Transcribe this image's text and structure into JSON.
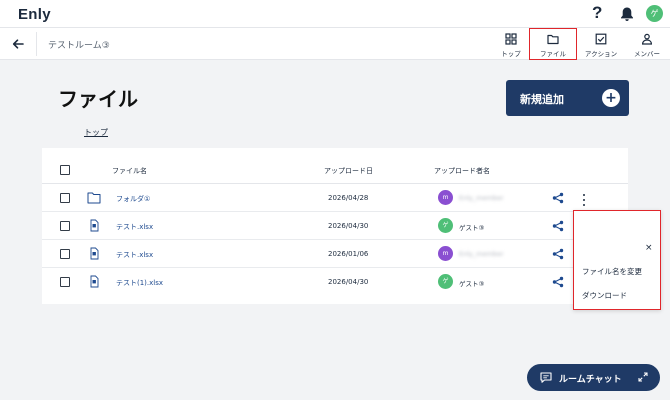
{
  "app": {
    "logo": "Enly",
    "help": "?",
    "user_initial": "ゲ"
  },
  "subnav": {
    "room": "テストルーム③",
    "tabs": [
      {
        "label": "トップ",
        "icon": "grid-icon"
      },
      {
        "label": "ファイル",
        "icon": "folder-icon",
        "active": true
      },
      {
        "label": "アクション",
        "icon": "checkbox-icon"
      },
      {
        "label": "メンバー",
        "icon": "person-icon"
      }
    ]
  },
  "page": {
    "title": "ファイル",
    "add_label": "新規追加",
    "add_icon": "+",
    "breadcrumb": "トップ"
  },
  "table": {
    "headers": {
      "name": "ファイル名",
      "date": "アップロード日",
      "uploader": "アップロード者名"
    },
    "rows": [
      {
        "type": "folder",
        "name": "フォルダ①",
        "date": "2026/04/28",
        "avatar": "m",
        "avatar_color": "#8a4fd1",
        "uploader": "Enly_member"
      },
      {
        "type": "file",
        "name": "テスト.xlsx",
        "date": "2026/04/30",
        "avatar": "ゲ",
        "avatar_color": "#4fbf77",
        "uploader": "ゲスト③"
      },
      {
        "type": "file",
        "name": "テスト.xlsx",
        "date": "2026/01/06",
        "avatar": "m",
        "avatar_color": "#8a4fd1",
        "uploader": "Enly_member"
      },
      {
        "type": "file",
        "name": "テスト(1).xlsx",
        "date": "2026/04/30",
        "avatar": "ゲ",
        "avatar_color": "#4fbf77",
        "uploader": "ゲスト③"
      }
    ]
  },
  "menu": {
    "close": "×",
    "items": [
      "ファイル名を変更",
      "ダウンロード"
    ]
  },
  "chat": {
    "label": "ルームチャット"
  },
  "colors": {
    "accent": "#1f3a66",
    "highlight": "#e0262b",
    "link": "#1e4a8f"
  }
}
